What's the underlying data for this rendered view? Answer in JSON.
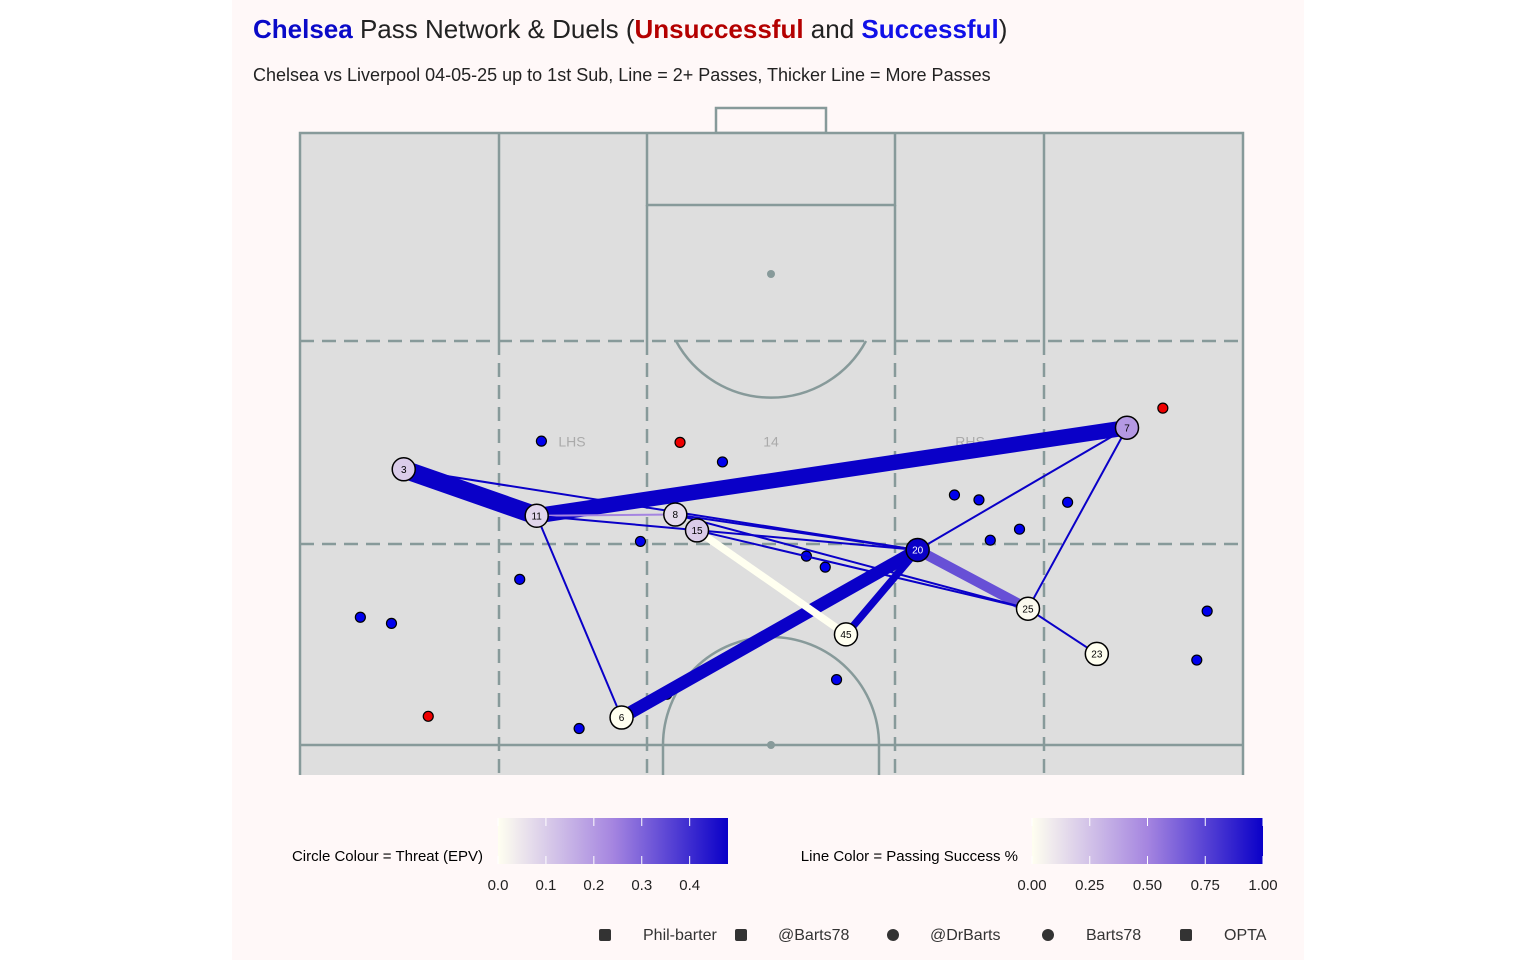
{
  "title": [
    {
      "text": "Chelsea",
      "color": "#0a0ac8",
      "bold": true
    },
    {
      "text": " Pass Network & Duels (",
      "color": "#222222",
      "bold": false
    },
    {
      "text": "Unsuccessful",
      "color": "#b40000",
      "bold": true
    },
    {
      "text": " and ",
      "color": "#222222",
      "bold": false
    },
    {
      "text": "Successful",
      "color": "#1010e8",
      "bold": true
    },
    {
      "text": ")",
      "color": "#222222",
      "bold": false
    }
  ],
  "subtitle": "Chelsea vs Liverpool 04-05-25 up to 1st Sub, Line = 2+ Passes, Thicker Line = More Passes",
  "pitch_labels": [
    "LHS",
    "14",
    "RHS"
  ],
  "xlim": [
    0,
    100
  ],
  "ylim": [
    47.5,
    100
  ],
  "nodes": [
    {
      "label": "3",
      "x": 11.0,
      "y": 72.5,
      "epv": 0.1
    },
    {
      "label": "11",
      "x": 25.1,
      "y": 68.7,
      "epv": 0.08
    },
    {
      "label": "8",
      "x": 39.8,
      "y": 68.8,
      "epv": 0.07
    },
    {
      "label": "15",
      "x": 42.1,
      "y": 67.5,
      "epv": 0.1
    },
    {
      "label": "20",
      "x": 65.5,
      "y": 65.9,
      "epv": 0.48
    },
    {
      "label": "7",
      "x": 87.7,
      "y": 75.9,
      "epv": 0.2
    },
    {
      "label": "25",
      "x": 77.2,
      "y": 61.1,
      "epv": 0.01
    },
    {
      "label": "45",
      "x": 57.9,
      "y": 59.0,
      "epv": 0.0
    },
    {
      "label": "23",
      "x": 84.5,
      "y": 57.4,
      "epv": 0.0
    },
    {
      "label": "6",
      "x": 34.1,
      "y": 52.2,
      "epv": 0.0
    }
  ],
  "edges": [
    {
      "from": "3",
      "to": "11",
      "passes": 8,
      "success": 1.0
    },
    {
      "from": "11",
      "to": "7",
      "passes": 7,
      "success": 1.0
    },
    {
      "from": "6",
      "to": "20",
      "passes": 6,
      "success": 1.0
    },
    {
      "from": "20",
      "to": "25",
      "passes": 5,
      "success": 0.7
    },
    {
      "from": "15",
      "to": "45",
      "passes": 4,
      "success": 0.0
    },
    {
      "from": "45",
      "to": "20",
      "passes": 4,
      "success": 1.0
    },
    {
      "from": "11",
      "to": "8",
      "passes": 2,
      "success": 0.5
    },
    {
      "from": "3",
      "to": "20",
      "passes": 2,
      "success": 1.0
    },
    {
      "from": "11",
      "to": "6",
      "passes": 2,
      "success": 1.0
    },
    {
      "from": "11",
      "to": "20",
      "passes": 2,
      "success": 1.0
    },
    {
      "from": "8",
      "to": "25",
      "passes": 2,
      "success": 1.0
    },
    {
      "from": "15",
      "to": "25",
      "passes": 2,
      "success": 1.0
    },
    {
      "from": "8",
      "to": "20",
      "passes": 2,
      "success": 1.0
    },
    {
      "from": "20",
      "to": "7",
      "passes": 2,
      "success": 1.0
    },
    {
      "from": "7",
      "to": "25",
      "passes": 2,
      "success": 1.0
    },
    {
      "from": "25",
      "to": "23",
      "passes": 2,
      "success": 1.0
    }
  ],
  "duels": [
    {
      "x": 25.6,
      "y": 74.8,
      "color": "#0000ee"
    },
    {
      "x": 44.8,
      "y": 73.1,
      "color": "#0000ee"
    },
    {
      "x": 36.1,
      "y": 66.6,
      "color": "#0000ee"
    },
    {
      "x": 23.3,
      "y": 63.5,
      "color": "#0000ee"
    },
    {
      "x": 6.4,
      "y": 60.4,
      "color": "#0000ee"
    },
    {
      "x": 9.7,
      "y": 59.9,
      "color": "#0000ee"
    },
    {
      "x": 29.6,
      "y": 51.3,
      "color": "#0000ee"
    },
    {
      "x": 38.9,
      "y": 54.1,
      "color": "#0000ee"
    },
    {
      "x": 53.7,
      "y": 65.4,
      "color": "#0000ee"
    },
    {
      "x": 55.7,
      "y": 64.5,
      "color": "#0000ee"
    },
    {
      "x": 56.9,
      "y": 55.3,
      "color": "#0000ee"
    },
    {
      "x": 69.4,
      "y": 70.4,
      "color": "#0000ee"
    },
    {
      "x": 72.0,
      "y": 70.0,
      "color": "#0000ee"
    },
    {
      "x": 73.2,
      "y": 66.7,
      "color": "#0000ee"
    },
    {
      "x": 76.3,
      "y": 67.6,
      "color": "#0000ee"
    },
    {
      "x": 81.4,
      "y": 69.8,
      "color": "#0000ee"
    },
    {
      "x": 96.2,
      "y": 60.9,
      "color": "#0000ee"
    },
    {
      "x": 95.1,
      "y": 56.9,
      "color": "#0000ee"
    },
    {
      "x": 40.3,
      "y": 74.7,
      "color": "#ee0000"
    },
    {
      "x": 91.5,
      "y": 77.5,
      "color": "#ee0000"
    },
    {
      "x": 13.6,
      "y": 52.3,
      "color": "#ee0000"
    }
  ],
  "colors": [
    "#fffff0",
    "#a585e0",
    "#0a00c8"
  ],
  "circle_legend": {
    "title": "Circle Colour = Threat (EPV)",
    "lim": [
      0,
      0.48
    ],
    "ticks": [
      {
        "value": 0,
        "label": "0.0"
      },
      0.1,
      0.2,
      0.3,
      0.4
    ]
  },
  "line_legend": {
    "title": "Line Color = Passing Success %",
    "lim": [
      0,
      1
    ],
    "ticks": [
      {
        "value": 0,
        "label": "0.00"
      },
      0.25,
      {
        "value": 0.5,
        "label": "0.50"
      },
      0.75,
      {
        "value": 1,
        "label": "1.00"
      }
    ]
  },
  "footer": [
    "Phil-barter",
    "@Barts78",
    "@DrBarts",
    "Barts78",
    "OPTA"
  ]
}
